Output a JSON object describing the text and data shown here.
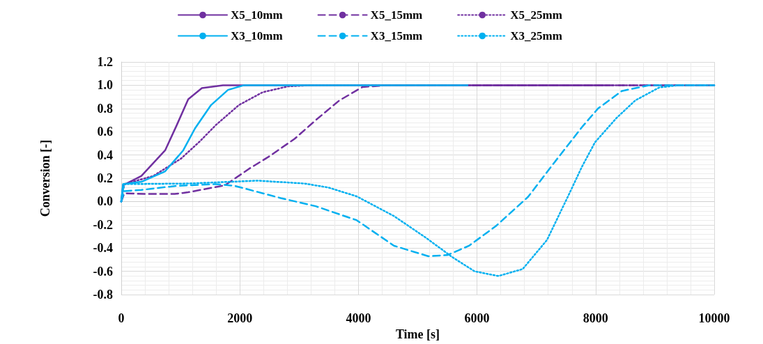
{
  "chart_data": {
    "type": "line",
    "xlabel": "Time [s]",
    "ylabel": "Conversion [-]",
    "xlim": [
      0,
      10000
    ],
    "xticks": [
      0,
      2000,
      4000,
      6000,
      8000,
      10000
    ],
    "ylim": [
      -0.8,
      1.2
    ],
    "yticks": [
      {
        "value": -0.8,
        "label": "-0.8"
      },
      {
        "value": -0.6,
        "label": "-0.6"
      },
      {
        "value": -0.4,
        "label": "-0.4"
      },
      {
        "value": -0.2,
        "label": "-0.2"
      },
      {
        "value": 0,
        "label": "0.0"
      },
      {
        "value": 0.2,
        "label": "0.2"
      },
      {
        "value": 0.4,
        "label": "0.4"
      },
      {
        "value": 0.6,
        "label": "0.6"
      },
      {
        "value": 0.8,
        "label": "0.8"
      },
      {
        "value": 1,
        "label": "1.0"
      },
      {
        "value": 1.2,
        "label": "1.2"
      }
    ],
    "grid": true,
    "legend": "top",
    "marker": "none",
    "series": [
      {
        "name": "X5_10mm",
        "color": "#7030a0",
        "line_style": "solid",
        "x": [
          0,
          30,
          340,
          740,
          930,
          1130,
          1360,
          1715,
          2000,
          8200
        ],
        "values": [
          0,
          0.14,
          0.22,
          0.44,
          0.65,
          0.88,
          0.975,
          1.0,
          1.0,
          1.0
        ]
      },
      {
        "name": "X5_15mm",
        "color": "#7030a0",
        "line_style": "dashed",
        "x": [
          0,
          50,
          500,
          900,
          1130,
          1750,
          2150,
          2500,
          2925,
          3280,
          3680,
          4070,
          4500,
          10000
        ],
        "values": [
          0,
          0.07,
          0.065,
          0.065,
          0.08,
          0.14,
          0.28,
          0.39,
          0.54,
          0.7,
          0.87,
          0.985,
          1.0,
          1.0
        ]
      },
      {
        "name": "X5_25mm",
        "color": "#7030a0",
        "line_style": "dotted",
        "x": [
          0,
          50,
          540,
          1010,
          1330,
          1600,
          1985,
          2385,
          2810,
          3200,
          10000
        ],
        "values": [
          0,
          0.15,
          0.22,
          0.37,
          0.52,
          0.66,
          0.83,
          0.94,
          0.99,
          1.0,
          1.0
        ]
      },
      {
        "name": "X3_10mm",
        "color": "#00b0f0",
        "line_style": "solid",
        "x": [
          0,
          30,
          340,
          740,
          1045,
          1245,
          1515,
          1800,
          2070,
          5840
        ],
        "values": [
          0,
          0.15,
          0.17,
          0.26,
          0.44,
          0.63,
          0.83,
          0.96,
          1.0,
          1.0
        ]
      },
      {
        "name": "X3_15mm",
        "color": "#00b0f0",
        "line_style": "dashed",
        "x": [
          0,
          50,
          340,
          930,
          1600,
          1915,
          2690,
          3280,
          3970,
          4600,
          5180,
          5500,
          5865,
          6320,
          6860,
          7310,
          7770,
          8040,
          8440,
          8900,
          10000
        ],
        "values": [
          0,
          0.09,
          0.1,
          0.135,
          0.15,
          0.135,
          0.03,
          -0.04,
          -0.16,
          -0.38,
          -0.47,
          -0.46,
          -0.38,
          -0.21,
          0.04,
          0.34,
          0.64,
          0.8,
          0.95,
          1.0,
          1.0
        ]
      },
      {
        "name": "X3_25mm",
        "color": "#00b0f0",
        "line_style": "dotted",
        "x": [
          0,
          50,
          1130,
          2300,
          3090,
          3500,
          3970,
          4600,
          5135,
          5590,
          5960,
          6360,
          6770,
          7180,
          7530,
          7770,
          7990,
          8355,
          8670,
          9070,
          9400,
          10000
        ],
        "values": [
          0,
          0.15,
          0.155,
          0.18,
          0.155,
          0.12,
          0.045,
          -0.125,
          -0.31,
          -0.48,
          -0.6,
          -0.64,
          -0.58,
          -0.33,
          0.04,
          0.3,
          0.51,
          0.72,
          0.87,
          0.98,
          1.0,
          1.0
        ]
      }
    ]
  }
}
